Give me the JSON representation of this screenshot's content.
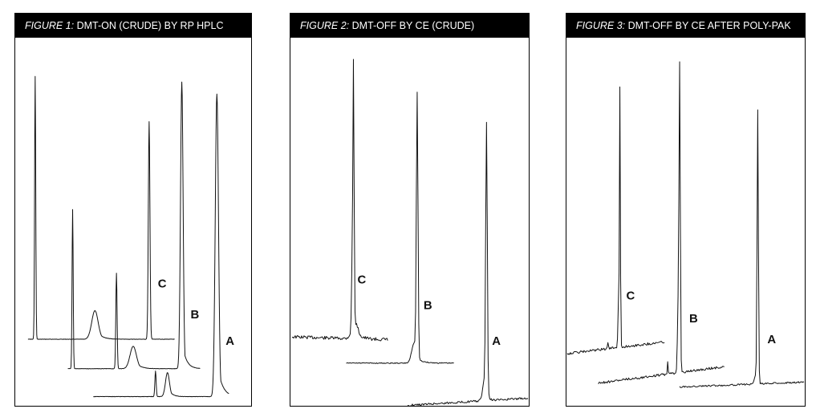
{
  "figures": [
    {
      "figure_label": "FIGURE 1:",
      "title": "DMT-ON (CRUDE) BY RP HPLC"
    },
    {
      "figure_label": "FIGURE 2:",
      "title": "DMT-OFF BY CE (CRUDE)"
    },
    {
      "figure_label": "FIGURE 3:",
      "title": "DMT-OFF BY CE AFTER POLY-PAK"
    }
  ],
  "chart_data": [
    {
      "type": "line",
      "title": "FIGURE 1: DMT-ON (CRUDE) BY RP HPLC",
      "series": [
        {
          "name": "C",
          "peaks": [
            {
              "rel_position": 0.03,
              "rel_height": 1.0
            },
            {
              "rel_position": 0.46,
              "rel_height": 0.12
            },
            {
              "rel_position": 0.83,
              "rel_height": 0.92
            }
          ]
        },
        {
          "name": "B",
          "peaks": [
            {
              "rel_position": 0.03,
              "rel_height": 1.0
            },
            {
              "rel_position": 0.37,
              "rel_height": 0.59
            },
            {
              "rel_position": 0.48,
              "rel_height": 0.14
            },
            {
              "rel_position": 0.94,
              "rel_height": 1.9
            }
          ]
        },
        {
          "name": "A",
          "peaks": [
            {
              "rel_position": 0.5,
              "rel_height": 0.2
            },
            {
              "rel_position": 0.57,
              "rel_height": 0.15
            },
            {
              "rel_position": 0.92,
              "rel_height": 2.1
            }
          ]
        }
      ],
      "peak_labels": [
        "C",
        "B",
        "A"
      ]
    },
    {
      "type": "line",
      "title": "FIGURE 2: DMT-OFF BY CE (CRUDE)",
      "series": [
        {
          "name": "C",
          "main_peak_rel_position": 0.66
        },
        {
          "name": "B",
          "main_peak_rel_position": 0.66
        },
        {
          "name": "A",
          "main_peak_rel_position": 0.66
        }
      ],
      "peak_labels": [
        "C",
        "B",
        "A"
      ]
    },
    {
      "type": "line",
      "title": "FIGURE 3: DMT-OFF BY CE AFTER POLY-PAK",
      "series": [
        {
          "name": "C",
          "main_peak_rel_position": 0.55
        },
        {
          "name": "B",
          "main_peak_rel_position": 0.65
        },
        {
          "name": "A",
          "main_peak_rel_position": 0.63
        }
      ],
      "peak_labels": [
        "C",
        "B",
        "A"
      ]
    }
  ]
}
